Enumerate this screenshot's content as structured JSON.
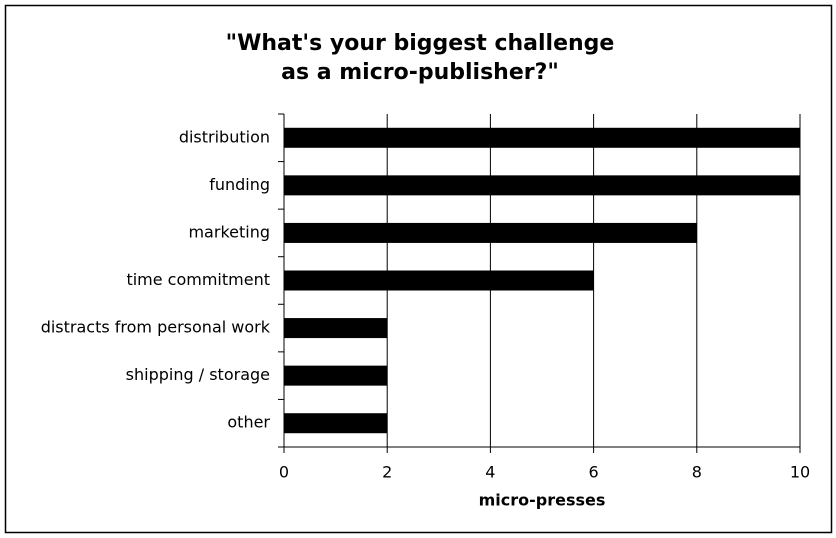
{
  "chart_data": {
    "type": "bar",
    "orientation": "horizontal",
    "title": [
      "\"What's your biggest challenge",
      "as a micro-publisher?\""
    ],
    "categories": [
      "distribution",
      "funding",
      "marketing",
      "time commitment",
      "distracts from personal work",
      "shipping / storage",
      "other"
    ],
    "values": [
      10,
      10,
      8,
      6,
      2,
      2,
      2
    ],
    "color": "#000000",
    "xlabel": "micro-presses",
    "xlim": [
      0,
      10
    ],
    "xticks": [
      0,
      2,
      4,
      6,
      8,
      10
    ],
    "grid": true
  }
}
